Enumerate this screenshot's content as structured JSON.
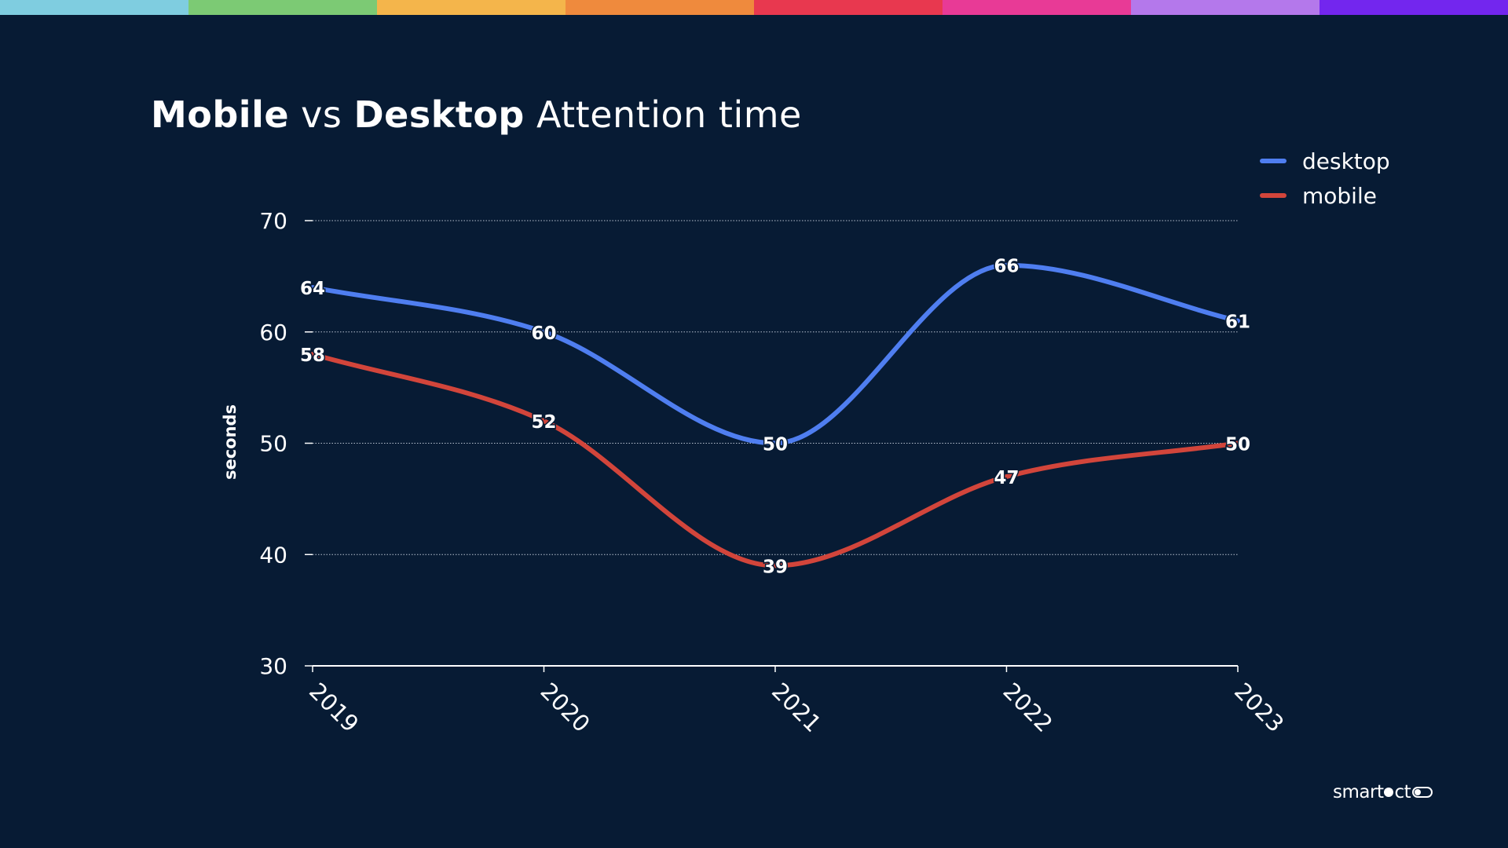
{
  "header": {
    "title_part1": "Mobile",
    "title_part2": " vs ",
    "title_part3": "Desktop",
    "title_part4": " Attention time"
  },
  "legend": [
    {
      "name": "desktop",
      "color": "#4f7ef0"
    },
    {
      "name": "mobile",
      "color": "#d2453b"
    }
  ],
  "brand": {
    "part1": "smart",
    "part2": "ct"
  },
  "stripe_colors": [
    "#7fcde0",
    "#7cca74",
    "#f4b54b",
    "#ef8a3d",
    "#e8384f",
    "#e83a96",
    "#b478eb",
    "#7326ee"
  ],
  "chart_data": {
    "type": "line",
    "title": "Mobile vs Desktop Attention time",
    "xlabel": "",
    "ylabel": "seconds",
    "categories": [
      "2019",
      "2020",
      "2021",
      "2022",
      "2023"
    ],
    "ylim": [
      30,
      70
    ],
    "yticks": [
      30,
      40,
      50,
      60,
      70
    ],
    "grid": true,
    "legend_position": "top-right",
    "series": [
      {
        "name": "desktop",
        "values": [
          64,
          60,
          50,
          66,
          61
        ],
        "color": "#4f7ef0"
      },
      {
        "name": "mobile",
        "values": [
          58,
          52,
          39,
          47,
          50
        ],
        "color": "#d2453b"
      }
    ]
  }
}
